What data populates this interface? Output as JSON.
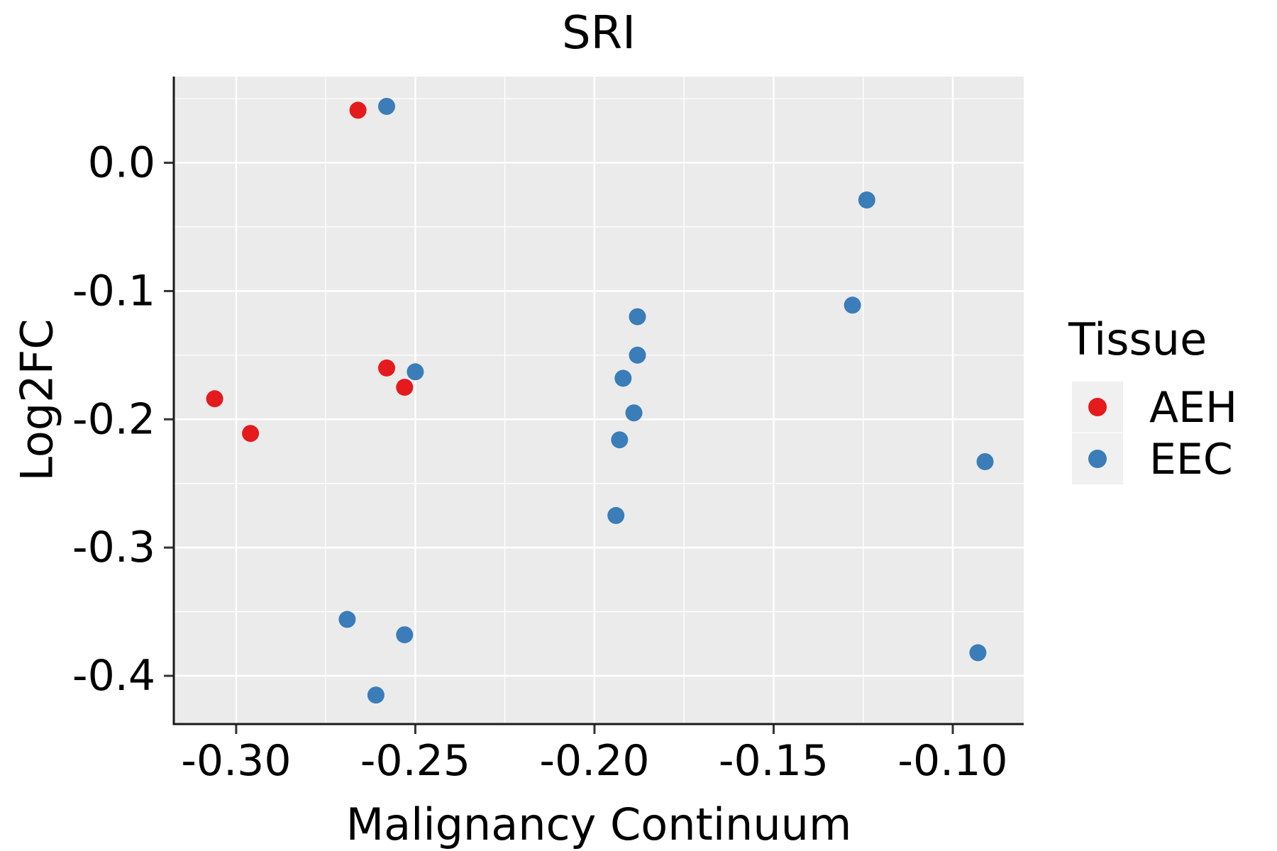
{
  "chart_data": {
    "type": "scatter",
    "title": "SRI",
    "xlabel": "Malignancy Continuum",
    "ylabel": "Log2FC",
    "xlim": [
      -0.3174,
      -0.0802
    ],
    "ylim": [
      -0.4376,
      0.0672
    ],
    "x_ticks": [
      -0.3,
      -0.25,
      -0.2,
      -0.15,
      -0.1
    ],
    "x_tick_labels": [
      "-0.30",
      "-0.25",
      "-0.20",
      "-0.15",
      "-0.10"
    ],
    "x_minor_ticks": [
      -0.275,
      -0.225,
      -0.175,
      -0.125
    ],
    "y_ticks": [
      0.0,
      -0.1,
      -0.2,
      -0.3,
      -0.4
    ],
    "y_tick_labels": [
      "0.0",
      "-0.1",
      "-0.2",
      "-0.3",
      "-0.4"
    ],
    "y_minor_ticks": [
      0.05,
      -0.05,
      -0.15,
      -0.25,
      -0.35
    ],
    "grid": true,
    "panel_bg": "#ebebeb",
    "grid_color": "#ffffff",
    "axis_color": "#1a1a1a",
    "legend": {
      "title": "Tissue",
      "position": "right",
      "key_bg": "#f0f0f0",
      "entries": [
        {
          "label": "AEH",
          "color": "#e41a1c"
        },
        {
          "label": "EEC",
          "color": "#3a7db8"
        }
      ]
    },
    "series": [
      {
        "name": "AEH",
        "color": "#e41a1c",
        "points": [
          [
            -0.266,
            0.041
          ],
          [
            -0.306,
            -0.184
          ],
          [
            -0.296,
            -0.211
          ],
          [
            -0.258,
            -0.16
          ],
          [
            -0.253,
            -0.175
          ]
        ]
      },
      {
        "name": "EEC",
        "color": "#3a7db8",
        "points": [
          [
            -0.258,
            0.044
          ],
          [
            -0.25,
            -0.163
          ],
          [
            -0.188,
            -0.12
          ],
          [
            -0.188,
            -0.15
          ],
          [
            -0.192,
            -0.168
          ],
          [
            -0.189,
            -0.195
          ],
          [
            -0.193,
            -0.216
          ],
          [
            -0.194,
            -0.275
          ],
          [
            -0.124,
            -0.029
          ],
          [
            -0.128,
            -0.111
          ],
          [
            -0.091,
            -0.233
          ],
          [
            -0.093,
            -0.382
          ],
          [
            -0.269,
            -0.356
          ],
          [
            -0.253,
            -0.368
          ],
          [
            -0.261,
            -0.415
          ]
        ]
      }
    ]
  }
}
